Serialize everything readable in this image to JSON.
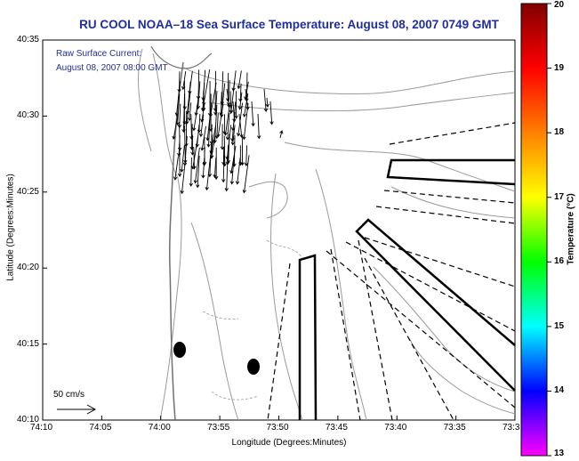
{
  "title": "RU COOL  NOAA–18  Sea Surface Temperature:  August 08, 2007 0749 GMT",
  "current_label": {
    "line1": "Raw Surface Current:",
    "line2": "August 08, 2007 08:00 GMT"
  },
  "scale": {
    "label": "50 cm/s"
  },
  "axes": {
    "x_label": "Longitude (Degrees:Minutes)",
    "y_label": "Latitude (Degrees:Minutes)",
    "x_ticks": [
      "74:10",
      "74:05",
      "74:00",
      "73:55",
      "73:50",
      "73:45",
      "73:40",
      "73:35",
      "73:3"
    ],
    "y_ticks": [
      "40:35",
      "40:30",
      "40:25",
      "40:20",
      "40:15",
      "40:10"
    ]
  },
  "colorbar": {
    "title": "Temperature (°C)",
    "min": 13,
    "max": 20,
    "ticks": [
      "20",
      "19",
      "18",
      "17",
      "16",
      "15",
      "14",
      "13"
    ],
    "colors": [
      "#ff00ff",
      "#0000ff",
      "#00ffff",
      "#00ff00",
      "#ffff00",
      "#ff8000",
      "#ff0000",
      "#800000"
    ]
  },
  "colors": {
    "title": "#1f2e9e",
    "contour": "#9a9a9a",
    "coast": "#707070"
  }
}
